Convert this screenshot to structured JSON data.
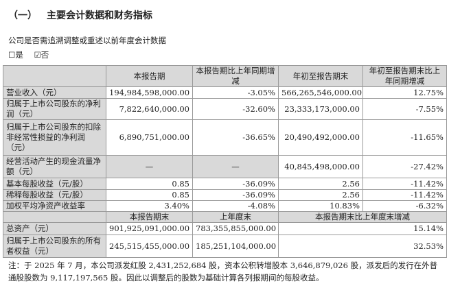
{
  "section": {
    "number": "（一）",
    "title": "主要会计数据和财务指标"
  },
  "restatement": {
    "question": "公司是否需追溯调整或重述以前年度会计数据",
    "options": [
      {
        "label": "是",
        "checked": false
      },
      {
        "label": "否",
        "checked": true
      }
    ],
    "unchecked_glyph": "☐",
    "checked_glyph": "☑"
  },
  "table": {
    "headers": [
      "",
      "本报告期",
      "本报告期比上年同期增减",
      "年初至报告期末",
      "年初至报告期末比上年同期增减"
    ],
    "rows": [
      [
        "营业收入（元）",
        "194,984,598,000.00",
        "-3.05%",
        "566,265,546,000.00",
        "12.75%"
      ],
      [
        "归属于上市公司股东的净利润（元）",
        "7,822,640,000.00",
        "-32.60%",
        "23,333,173,000.00",
        "-7.55%"
      ],
      [
        "归属于上市公司股东的扣除非经常性损益的净利润（元）",
        "6,890,751,000.00",
        "-36.65%",
        "20,490,492,000.00",
        "-11.65%"
      ],
      [
        "经营活动产生的现金流量净额（元）",
        "—",
        "—",
        "40,845,498,000.00",
        "-27.42%"
      ],
      [
        "基本每股收益（元/股）",
        "0.85",
        "-36.09%",
        "2.56",
        "-11.42%"
      ],
      [
        "稀释每股收益（元/股）",
        "0.85",
        "-36.09%",
        "2.56",
        "-11.42%"
      ],
      [
        "加权平均净资产收益率",
        "3.40%",
        "-4.08%",
        "10.83%",
        "-6.32%"
      ]
    ],
    "headers2": [
      "",
      "本报告期末",
      "上年度末",
      "本报告期末比上年度末增减"
    ],
    "rows2": [
      [
        "总资产（元）",
        "901,925,091,000.00",
        "783,355,855,000.00",
        "15.14%"
      ],
      [
        "归属于上市公司股东的所有者权益（元）",
        "245,515,455,000.00",
        "185,251,104,000.00",
        "32.53%"
      ]
    ]
  },
  "note": "注：于 2025 年 7 月，本公司派发红股 2,431,252,684 股，资本公积转增股本 3,646,879,026 股，派发后的发行在外普通股股数为 9,117,197,565 股。因此以调整后的股数为基础计算各列报期间的每股收益。"
}
